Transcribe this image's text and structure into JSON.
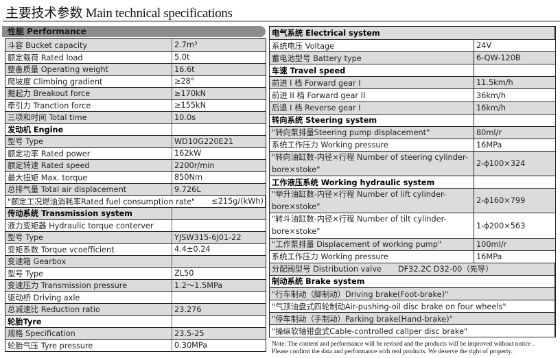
{
  "title": "主要技术参数 Main technical specifications",
  "left": {
    "section_title": "性能 Performance",
    "rows": [
      {
        "label": "斗容 Bucket capacity",
        "value": "2.7m³"
      },
      {
        "label": "额定载荷 Rated load",
        "value": "5.0t"
      },
      {
        "label": "整备质量 Operating weight",
        "value": "16.6t"
      },
      {
        "label": "爬坡度 Climbing gradient",
        "value": "≥28°"
      },
      {
        "label": "掘起力 Breakout force",
        "value": "≥170kN"
      },
      {
        "label": "牵引力 Tranction force",
        "value": "≥155kN"
      },
      {
        "label": "三项和时间 Total time",
        "value": "10.0s"
      },
      {
        "label": "发动机 Engine",
        "value": "",
        "kind": "head"
      },
      {
        "label": "型号 Type",
        "value": " WD10G220E21"
      },
      {
        "label": "额定功率 Rated power",
        "value": "162kW"
      },
      {
        "label": "额定转速 Rated speed",
        "value": "2200r/min"
      },
      {
        "label": "最大扭矩 Max. torque",
        "value": "850Nm"
      },
      {
        "label": "总排气量 Total air displacement",
        "value": "9.726L"
      },
      {
        "label": "\"额定工况燃油消耗率Rated fuel consumption rate\"",
        "value": "≤215g/(kWh)",
        "kind": "span"
      },
      {
        "label": "传动系统 Transmission system",
        "value": "",
        "kind": "head"
      },
      {
        "label": "液力变矩器 Hydraulic torque conterver",
        "value": ""
      },
      {
        "label": "型号 Type",
        "value": "YJSW315-6J01-22"
      },
      {
        "label": "变矩系数 Torque vcoefficient",
        "value": "4.4±0.24"
      },
      {
        "label": "变速箱 Gearbox",
        "value": ""
      },
      {
        "label": "型号 Type",
        "value": " ZL50"
      },
      {
        "label": "变速压力 Transmission pressure",
        "value": "1.2～1.5MPa"
      },
      {
        "label": "驱动桥 Driving axle",
        "value": ""
      },
      {
        "label": "总减速比 Reduction ratio",
        "value": "23.276"
      },
      {
        "label": "轮胎Tyre",
        "value": "",
        "kind": "head"
      },
      {
        "label": "规格 Specification",
        "value": " 23.5-25"
      },
      {
        "label": "轮胎气压 Tyre pressure",
        "value": "0.30MPa"
      }
    ]
  },
  "right": {
    "rows": [
      {
        "label": "电气系统 Electrical system",
        "value": "",
        "kind": "head span"
      },
      {
        "label": "系统电压 Voltage",
        "value": "24V"
      },
      {
        "label": "蓄电池型号 Battery type",
        "value": " 6-QW-120B"
      },
      {
        "label": "车速 Travel speed",
        "value": "",
        "kind": "head"
      },
      {
        "label": "前进 I 档 Forward gear  I",
        "value": "11.5km/h"
      },
      {
        "label": "前进 II 档 Forward gear  II",
        "value": "36km/h"
      },
      {
        "label": "后退 I 档 Reverse gear  I",
        "value": "16km/h"
      },
      {
        "label": "转向系统 Steering system",
        "value": "",
        "kind": "head"
      },
      {
        "label": "\"转向泵排量Steering pump displacement\"",
        "value": "80ml/r"
      },
      {
        "label": "系统工作压力 Working pressure",
        "value": "16MPa"
      },
      {
        "label": "\"转向油缸数-内径×行程 Number of steering cylinder-bore×stoke\"",
        "value": "2-ϕ100×324",
        "kind": "double"
      },
      {
        "label": "工作液压系统 Working hydraulic system",
        "value": "",
        "kind": "head"
      },
      {
        "label": "\"举升油缸数-内径×行程 Number of lift cylinder-bore×stoke\"",
        "value": "2-ϕ160×799",
        "kind": "double"
      },
      {
        "label": "\"转斗油缸数-内径×行程 Number of tilt cylinder-bore×stoke\"",
        "value": "1-ϕ200×563",
        "kind": "double"
      },
      {
        "label": "\"工作泵排量 Displacement of working pump\"",
        "value": " 100ml/r"
      },
      {
        "label": "系统工作压力 Working pressure",
        "value": " 16MPa"
      },
      {
        "label": "分配阀型号 Distribution valve",
        "value": "DF32.2C  D32-00（先导）",
        "kind": "span"
      },
      {
        "label": "制动系统 Brake system",
        "value": "",
        "kind": "head span"
      },
      {
        "label": "\"行车制动（脚制动）Driving brake(Foot-brake)\"",
        "value": "",
        "kind": "span"
      },
      {
        "label": "\"气顶油盘式四轮制动Air-pushing-oil disc brake on four wheels\"",
        "value": "",
        "kind": "span"
      },
      {
        "label": "\"停车制动（手制动）Parking brake(Hand-brake)\"",
        "value": "",
        "kind": "span"
      },
      {
        "label": "\"操纵软轴钳盘式Cable-controlled callper disc brake\"",
        "value": "",
        "kind": "span"
      }
    ]
  },
  "note": {
    "line1": "Note: The content and performance will be revised and the products will be improved without notice .",
    "line2": "Please confirm the data and performance with real products. We deserve the right of property."
  }
}
